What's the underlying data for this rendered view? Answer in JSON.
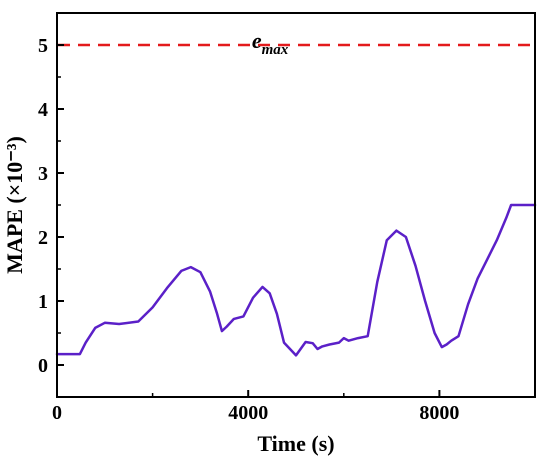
{
  "chart_data": {
    "type": "line",
    "xlabel": "Time (s)",
    "ylabel": "MAPE (×10⁻³)",
    "xlim": [
      0,
      10000
    ],
    "ylim": [
      -0.5,
      5.5
    ],
    "xticks": [
      0,
      4000,
      8000
    ],
    "xtick_labels": [
      "0",
      "4000",
      "8000"
    ],
    "yticks": [
      0,
      1,
      2,
      3,
      4,
      5
    ],
    "ytick_labels": [
      "0",
      "1",
      "2",
      "3",
      "4",
      "5"
    ],
    "grid": false,
    "series": [
      {
        "color": "#5b20c8",
        "x": [
          0,
          200,
          480,
          600,
          800,
          1000,
          1300,
          1700,
          2000,
          2300,
          2600,
          2800,
          3000,
          3200,
          3350,
          3450,
          3550,
          3700,
          3900,
          4100,
          4300,
          4450,
          4600,
          4750,
          5000,
          5200,
          5350,
          5450,
          5550,
          5700,
          5900,
          6000,
          6100,
          6300,
          6500,
          6700,
          6900,
          7100,
          7300,
          7500,
          7700,
          7900,
          8050,
          8150,
          8250,
          8400,
          8600,
          8800,
          9000,
          9200,
          9400,
          9500,
          10000
        ],
        "y": [
          0.17,
          0.17,
          0.17,
          0.35,
          0.58,
          0.66,
          0.64,
          0.68,
          0.9,
          1.2,
          1.47,
          1.53,
          1.45,
          1.15,
          0.8,
          0.53,
          0.6,
          0.72,
          0.76,
          1.05,
          1.22,
          1.12,
          0.8,
          0.35,
          0.15,
          0.36,
          0.34,
          0.25,
          0.29,
          0.32,
          0.35,
          0.42,
          0.38,
          0.42,
          0.45,
          1.3,
          1.95,
          2.1,
          2.0,
          1.55,
          1.0,
          0.5,
          0.28,
          0.32,
          0.38,
          0.45,
          0.95,
          1.35,
          1.65,
          1.95,
          2.3,
          2.5,
          2.5
        ]
      }
    ],
    "reference_lines": [
      {
        "y": 5,
        "color": "#e31a1c",
        "style": "dashed"
      }
    ],
    "annotations": [
      {
        "text": "e",
        "subscript": "max",
        "x": 4600,
        "y": 5
      }
    ]
  }
}
